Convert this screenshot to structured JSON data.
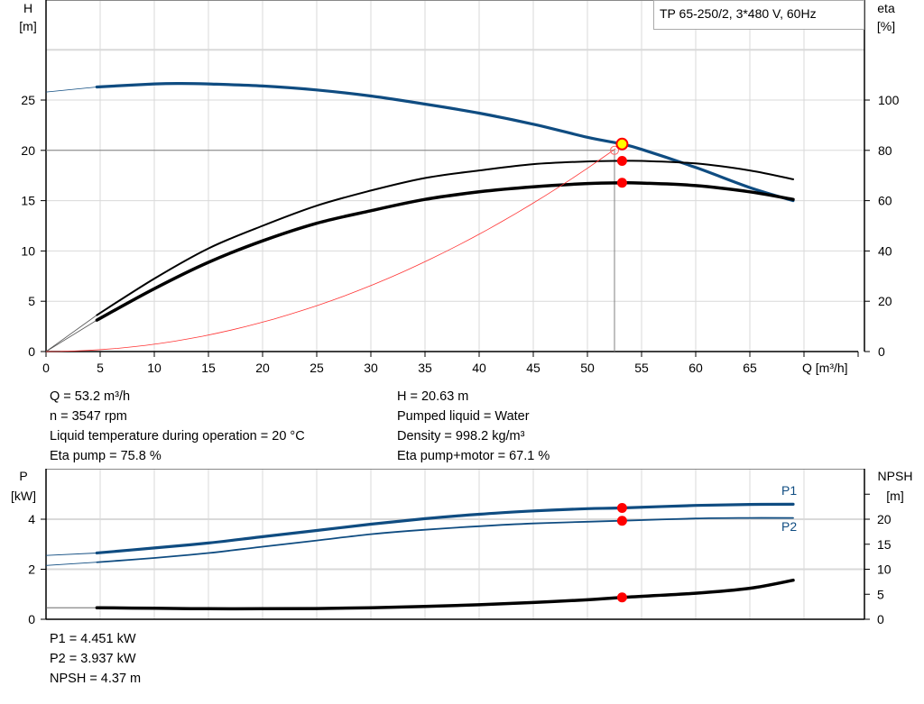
{
  "chart_data": [
    {
      "type": "line",
      "title": "TP 65-250/2, 3*480 V, 60Hz",
      "xlabel": "Q [m³/h]",
      "ylabel": "H\n[m]",
      "ylabel_lines": [
        "H",
        "[m]"
      ],
      "y2label_lines": [
        "eta",
        "[%]"
      ],
      "xlim": [
        0,
        75
      ],
      "ylim": [
        0,
        35
      ],
      "y2lim": [
        0,
        140
      ],
      "xticks": [
        0,
        5,
        10,
        15,
        20,
        25,
        30,
        35,
        40,
        45,
        50,
        55,
        60,
        65
      ],
      "yticks": [
        0,
        5,
        10,
        15,
        20,
        25
      ],
      "y2ticks": [
        0,
        20,
        40,
        60,
        80,
        100
      ],
      "grid": true,
      "series": [
        {
          "key": "H",
          "axis": "left",
          "color": "#0f4c81",
          "width": 3.2,
          "x": [
            4.7,
            10,
            12.5,
            15,
            20,
            25,
            30,
            35,
            40,
            45,
            50,
            53.2,
            55,
            60,
            65,
            69
          ],
          "y": [
            26.3,
            26.6,
            26.65,
            26.6,
            26.4,
            26.0,
            25.4,
            24.6,
            23.7,
            22.6,
            21.3,
            20.63,
            20.1,
            18.3,
            16.3,
            15.0
          ],
          "extrapolated": {
            "x": [
              0,
              4.7
            ],
            "y": [
              25.8,
              26.3
            ]
          }
        },
        {
          "key": "eta_pump",
          "axis": "right",
          "color": "#000000",
          "width": 2,
          "x": [
            4.7,
            10,
            15,
            20,
            25,
            30,
            35,
            40,
            45,
            50,
            53.2,
            55,
            60,
            65,
            69
          ],
          "y": [
            14.5,
            29,
            41,
            50,
            58,
            64,
            69,
            72,
            74.5,
            75.6,
            75.8,
            75.8,
            74.8,
            72,
            68.5
          ],
          "extrapolated": {
            "x": [
              0,
              4.7
            ],
            "y": [
              0,
              14.5
            ]
          }
        },
        {
          "key": "eta_pump_motor",
          "axis": "right",
          "color": "#000000",
          "width": 3.5,
          "x": [
            4.7,
            10,
            15,
            20,
            25,
            30,
            35,
            40,
            45,
            50,
            53.2,
            55,
            60,
            65,
            69
          ],
          "y": [
            12.5,
            25,
            35.5,
            44,
            51,
            56,
            60.5,
            63.5,
            65.5,
            66.8,
            67.1,
            67,
            66,
            63.5,
            60.5
          ],
          "extrapolated": {
            "x": [
              0,
              4.7
            ],
            "y": [
              0,
              12.5
            ]
          }
        },
        {
          "key": "system_curve",
          "axis": "left",
          "color": "#ff3333",
          "width": 0.8,
          "formula": "H = 0.00729*Q^2",
          "x_range": [
            0,
            52.6
          ]
        }
      ],
      "duty_point": {
        "Q": 52.5,
        "H": 20
      },
      "operating_point": {
        "Q": 53.2,
        "H": 20.63,
        "eta_pump": 75.8,
        "eta_pump_motor": 67.1
      },
      "colors": {
        "operating_point_fill": "#ffff00",
        "marker": "#ff0000",
        "grid": "#d9d9d9",
        "guide": "#808080"
      }
    },
    {
      "type": "line",
      "ylabel_lines": [
        "P",
        "[kW]"
      ],
      "y2label_lines": [
        "NPSH",
        "[m]"
      ],
      "xlim": [
        0,
        75
      ],
      "ylim": [
        0,
        6
      ],
      "y2lim": [
        0,
        30
      ],
      "yticks": [
        0,
        2,
        4
      ],
      "y2ticks": [
        0,
        5,
        10,
        15,
        20
      ],
      "y2ticks_unlabeled": [
        25
      ],
      "grid": true,
      "series": [
        {
          "name": "P1",
          "axis": "left",
          "color": "#0f4c81",
          "width": 3.2,
          "x": [
            4.7,
            10,
            15,
            20,
            25,
            30,
            35,
            40,
            45,
            50,
            53.2,
            60,
            65,
            69
          ],
          "y": [
            2.65,
            2.85,
            3.05,
            3.3,
            3.55,
            3.8,
            4.02,
            4.2,
            4.33,
            4.42,
            4.451,
            4.55,
            4.59,
            4.6
          ],
          "extrapolated": {
            "x": [
              0,
              4.7
            ],
            "y": [
              2.55,
              2.65
            ]
          }
        },
        {
          "name": "P2",
          "axis": "left",
          "color": "#0f4c81",
          "width": 1.8,
          "x": [
            4.7,
            10,
            15,
            20,
            25,
            30,
            35,
            40,
            45,
            50,
            53.2,
            60,
            65,
            69
          ],
          "y": [
            2.28,
            2.45,
            2.65,
            2.9,
            3.15,
            3.4,
            3.58,
            3.72,
            3.83,
            3.9,
            3.937,
            4.03,
            4.05,
            4.05
          ],
          "extrapolated": {
            "x": [
              0,
              4.7
            ],
            "y": [
              2.15,
              2.28
            ]
          }
        },
        {
          "key": "NPSH",
          "axis": "right",
          "color": "#000000",
          "width": 3.5,
          "x": [
            4.7,
            10,
            15,
            20,
            25,
            30,
            35,
            40,
            45,
            50,
            53.2,
            60,
            65,
            69
          ],
          "y": [
            2.3,
            2.2,
            2.1,
            2.1,
            2.15,
            2.3,
            2.55,
            2.9,
            3.35,
            3.9,
            4.37,
            5.2,
            6.2,
            7.8
          ],
          "extrapolated": {
            "x": [
              0,
              4.7
            ],
            "y": [
              2.3,
              2.3
            ]
          }
        }
      ],
      "operating_point": {
        "Q": 53.2,
        "P1": 4.451,
        "P2": 3.937,
        "NPSH": 4.37
      }
    }
  ],
  "info": {
    "left": [
      "Q = 53.2 m³/h",
      "n = 3547 rpm",
      "Liquid temperature during operation = 20 °C",
      "Eta pump = 75.8 %"
    ],
    "right": [
      "H = 20.63 m",
      "Pumped liquid = Water",
      "Density = 998.2 kg/m³",
      "Eta pump+motor = 67.1 %"
    ],
    "power": [
      "P1 = 4.451 kW",
      "P2 = 3.937 kW",
      "NPSH = 4.37 m"
    ]
  }
}
